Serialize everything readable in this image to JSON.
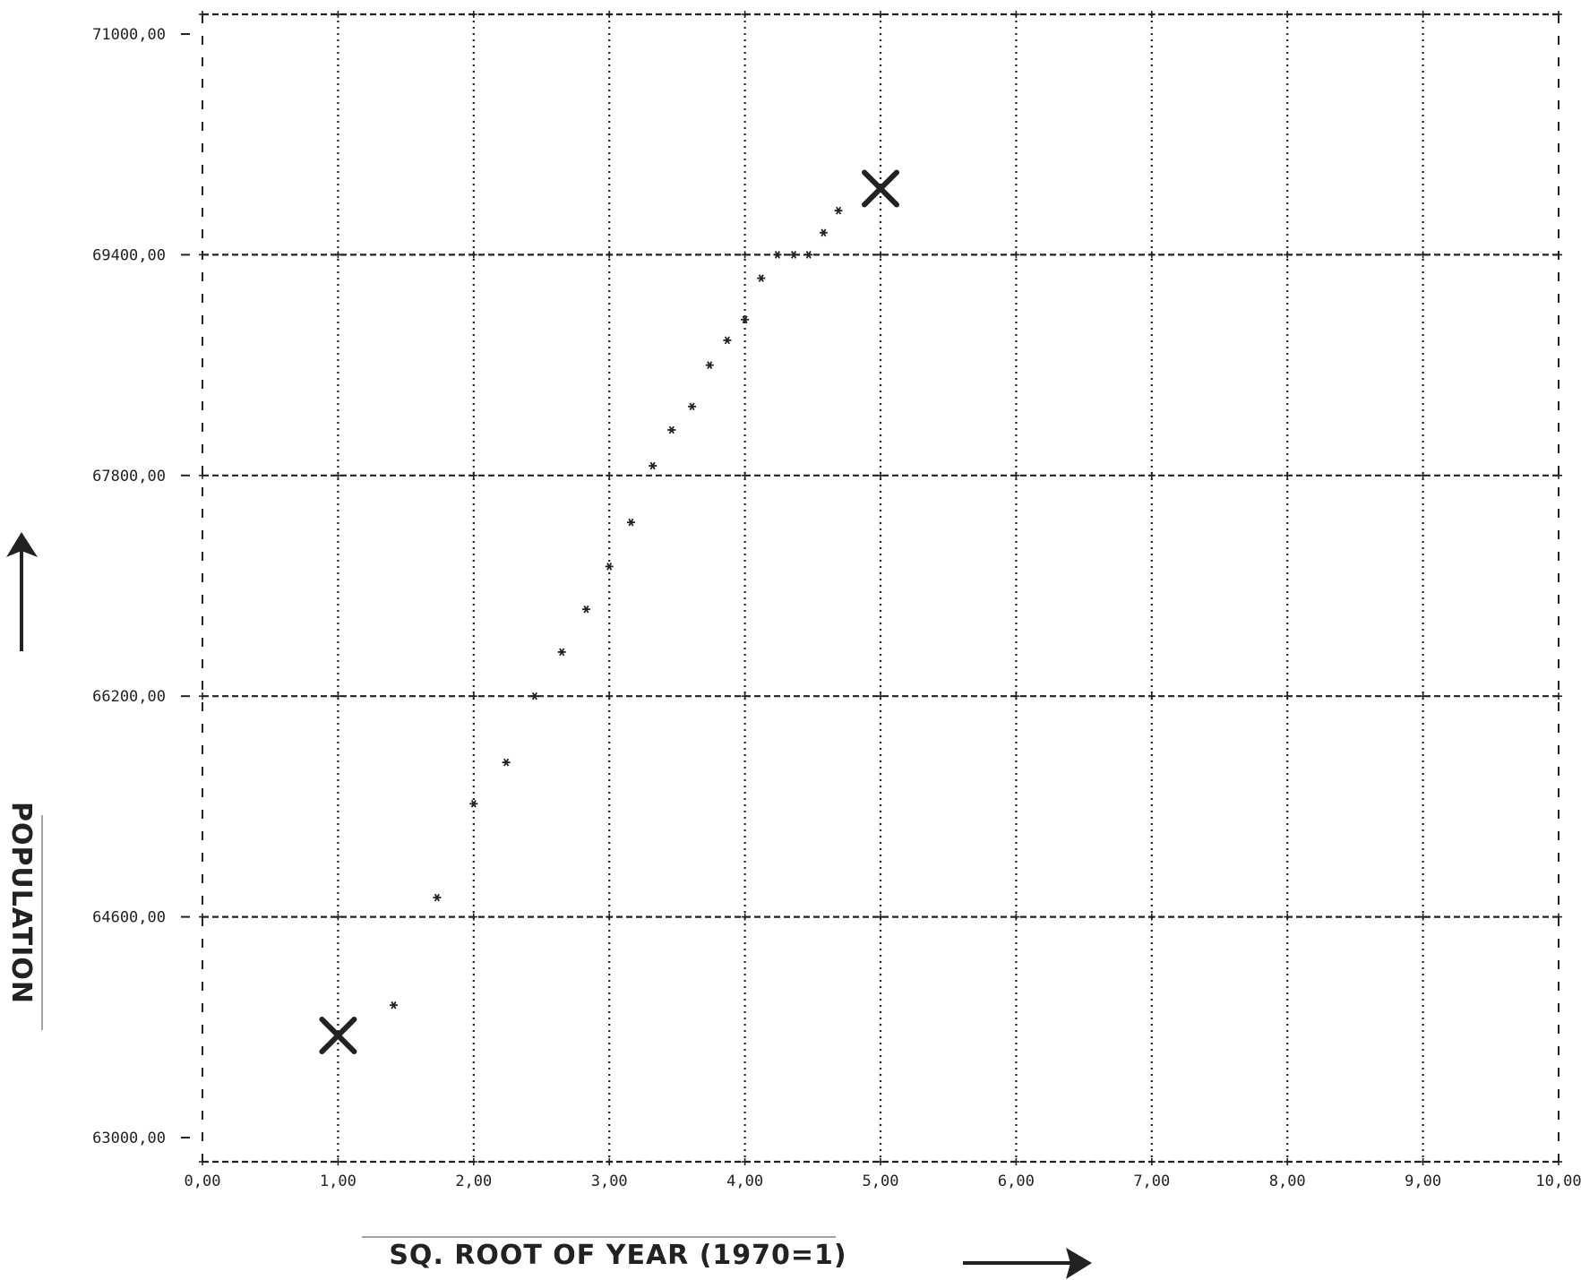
{
  "chart_data": {
    "type": "scatter",
    "xlabel": "SQ. ROOT OF YEAR (1970=1)",
    "ylabel": "POPULATION",
    "xlim": [
      0,
      10
    ],
    "ylim": [
      63000,
      71000
    ],
    "x_ticks": [
      0,
      1,
      2,
      3,
      4,
      5,
      6,
      7,
      8,
      9,
      10
    ],
    "y_ticks": [
      63000,
      64600,
      66200,
      67800,
      69400,
      71000
    ],
    "x_tick_labels": [
      "0,00",
      "1,00",
      "2,00",
      "3,00",
      "4,00",
      "5,00",
      "6,00",
      "7,00",
      "8,00",
      "9,00",
      "10,00"
    ],
    "y_tick_labels": [
      "63000,00",
      "64600,00",
      "66200,00",
      "67800,00",
      "69400,00",
      "71000,00"
    ],
    "grid": true,
    "color": "#222222",
    "series": [
      {
        "marker": "*",
        "points": [
          [
            1.41,
            63960
          ],
          [
            1.73,
            64740
          ],
          [
            2.0,
            65420
          ],
          [
            2.24,
            65720
          ],
          [
            2.45,
            66200
          ],
          [
            2.65,
            66520
          ],
          [
            2.83,
            66830
          ],
          [
            3.0,
            67140
          ],
          [
            3.16,
            67460
          ],
          [
            3.32,
            67870
          ],
          [
            3.46,
            68130
          ],
          [
            3.61,
            68300
          ],
          [
            3.74,
            68600
          ],
          [
            3.87,
            68780
          ],
          [
            4.0,
            68930
          ],
          [
            4.12,
            69230
          ],
          [
            4.24,
            69400
          ],
          [
            4.36,
            69400
          ],
          [
            4.47,
            69400
          ],
          [
            4.58,
            69560
          ],
          [
            4.69,
            69720
          ]
        ]
      },
      {
        "marker": "X",
        "points": [
          [
            1.0,
            63740
          ],
          [
            5.0,
            69880
          ]
        ]
      }
    ]
  }
}
